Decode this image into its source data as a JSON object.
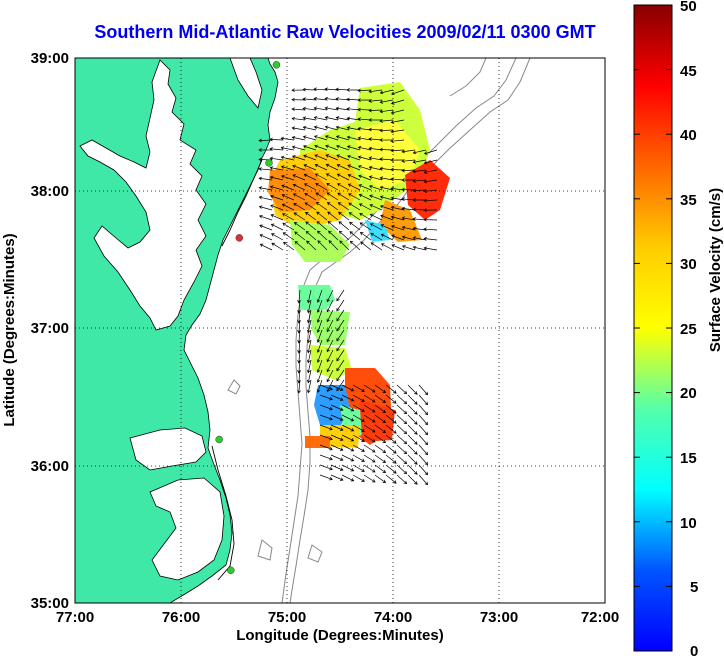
{
  "title": "Southern Mid-Atlantic Raw Velocities 2009/02/11 0300 GMT",
  "map": {
    "xlabel": "Longitude (Degrees:Minutes)",
    "ylabel": "Latitude (Degrees:Minutes)",
    "x_ticks": [
      "77:00",
      "76:00",
      "75:00",
      "74:00",
      "73:00",
      "72:00"
    ],
    "y_ticks": [
      "39:00",
      "38:00",
      "37:00",
      "36:00",
      "35:00"
    ],
    "lon_range": [
      -77,
      -72
    ],
    "lat_range": [
      35,
      39
    ],
    "grid": "dotted"
  },
  "colorbar": {
    "label": "Surface Velocity (cm/s)",
    "ticks": [
      "50",
      "45",
      "40",
      "35",
      "30",
      "25",
      "20",
      "15",
      "10",
      "5",
      "0"
    ],
    "range": [
      0,
      50
    ]
  },
  "colors": {
    "land": "#3fe8a6",
    "coastline": "#000000",
    "bathymetry": "#888888",
    "title": "#0000ee",
    "station": "#2ccc2c",
    "station_alt": "#dd3030"
  },
  "stations": [
    {
      "lon": -75.1,
      "lat": 38.95,
      "status": "ok"
    },
    {
      "lon": -75.17,
      "lat": 38.23,
      "status": "ok"
    },
    {
      "lon": -75.45,
      "lat": 37.68,
      "status": "alt"
    },
    {
      "lon": -75.64,
      "lat": 36.2,
      "status": "ok"
    },
    {
      "lon": -75.53,
      "lat": 35.24,
      "status": "ok"
    }
  ]
}
